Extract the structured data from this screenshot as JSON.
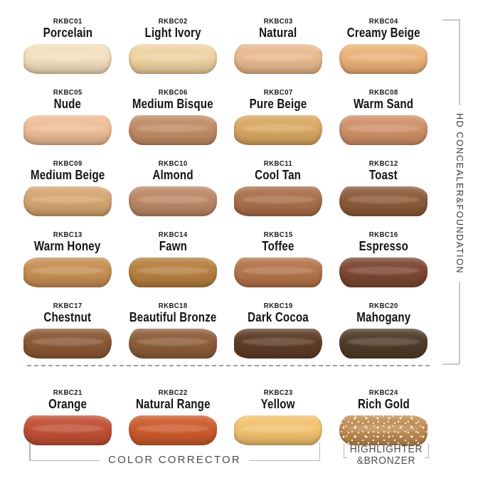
{
  "right_bracket": {
    "label": "HD CONCEALER&FOUNDATION"
  },
  "bottom": {
    "color_corrector_label": "COLOR CORRECTOR",
    "highlighter_line1": "HIGHLIGHTER",
    "highlighter_line2": "&BRONZER"
  },
  "bracket_line_color": "#b5b5b5",
  "shades": [
    {
      "code": "RKBC01",
      "name": "Porcelain",
      "color": "#f2dfbd"
    },
    {
      "code": "RKBC02",
      "name": "Light Ivory",
      "color": "#eed2a0"
    },
    {
      "code": "RKBC03",
      "name": "Natural",
      "color": "#e7b98f"
    },
    {
      "code": "RKBC04",
      "name": "Creamy Beige",
      "color": "#eab177"
    },
    {
      "code": "RKBC05",
      "name": "Nude",
      "color": "#eebd97"
    },
    {
      "code": "RKBC06",
      "name": "Medium Bisque",
      "color": "#c08b65"
    },
    {
      "code": "RKBC07",
      "name": "Pure Beige",
      "color": "#d8a762"
    },
    {
      "code": "RKBC08",
      "name": "Warm Sand",
      "color": "#cf9068"
    },
    {
      "code": "RKBC09",
      "name": "Medium Beige",
      "color": "#d5a571"
    },
    {
      "code": "RKBC10",
      "name": "Almond",
      "color": "#bc8767"
    },
    {
      "code": "RKBC11",
      "name": "Cool Tan",
      "color": "#a96f4b"
    },
    {
      "code": "RKBC12",
      "name": "Toast",
      "color": "#8c5a3a"
    },
    {
      "code": "RKBC13",
      "name": "Warm Honey",
      "color": "#c78f55"
    },
    {
      "code": "RKBC14",
      "name": "Fawn",
      "color": "#b67f40"
    },
    {
      "code": "RKBC15",
      "name": "Toffee",
      "color": "#b2744a"
    },
    {
      "code": "RKBC16",
      "name": "Espresso",
      "color": "#7c4633"
    },
    {
      "code": "RKBC17",
      "name": "Chestnut",
      "color": "#8a5836"
    },
    {
      "code": "RKBC18",
      "name": "Beautiful Bronze",
      "color": "#8c5d3a"
    },
    {
      "code": "RKBC19",
      "name": "Dark Cocoa",
      "color": "#5d3c27"
    },
    {
      "code": "RKBC20",
      "name": "Mahogany",
      "color": "#4f3b29"
    },
    {
      "code": "RKBC21",
      "name": "Orange",
      "color": "#c14f35"
    },
    {
      "code": "RKBC22",
      "name": "Natural Range",
      "color": "#cc5b2b"
    },
    {
      "code": "RKBC23",
      "name": "Yellow",
      "color": "#f1c36f"
    },
    {
      "code": "RKBC24",
      "name": "Rich Gold",
      "color": "#bf8b50",
      "finish": "shimmer"
    }
  ]
}
